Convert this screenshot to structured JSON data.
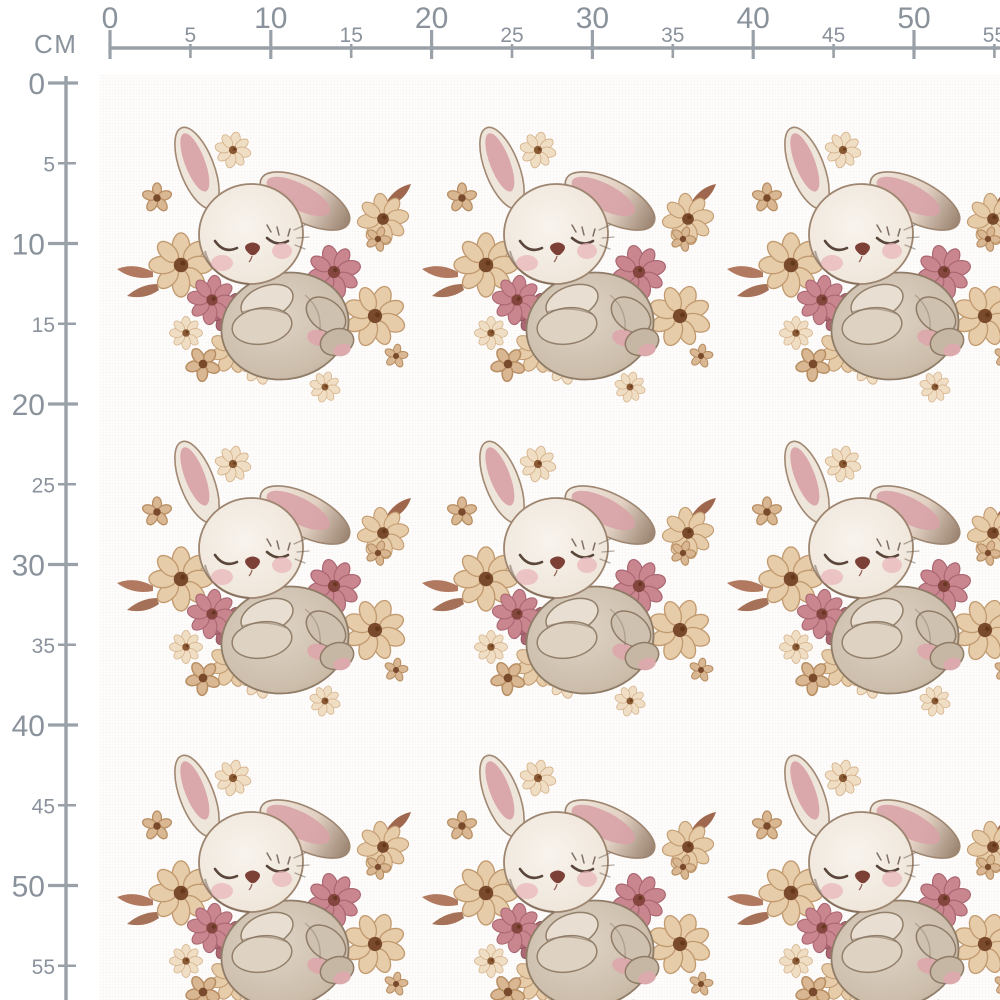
{
  "page": {
    "background": "#ffffff",
    "description": "Fabric print preview with centimeter rulers and a repeating watercolor sleeping-bunny floral pattern"
  },
  "rulers": {
    "unit_label": "CM",
    "text_color": "#8a929c",
    "line_color": "#99a0a8",
    "horizontal_labels": [
      "0",
      "5",
      "10",
      "15",
      "20",
      "25",
      "30",
      "35",
      "40",
      "45",
      "50",
      "55"
    ],
    "vertical_labels": [
      "0",
      "5",
      "10",
      "15",
      "20",
      "25",
      "30",
      "35",
      "40",
      "45",
      "50",
      "55"
    ]
  },
  "pattern": {
    "motif_name": "sleeping-bunny-with-flowers",
    "rows": 3,
    "columns": 3,
    "palette": {
      "bunny_cream": "#f2ebe2",
      "bunny_body": "#cdbfae",
      "ear_pink": "#d8a2a6",
      "pad_pink": "#dcaaac",
      "cheek_pink": "#e9b4b8",
      "nose_brown": "#7c4036",
      "flower_tan": "#e6cca9",
      "flower_tan_edge": "#c29a6f",
      "flower_center": "#7a4a2c",
      "flower_pink": "#c9868f",
      "flower_pink_dark": "#ab6872",
      "leaf_brown": "#a96a4e",
      "sketch_brown": "#8f7c67"
    }
  }
}
